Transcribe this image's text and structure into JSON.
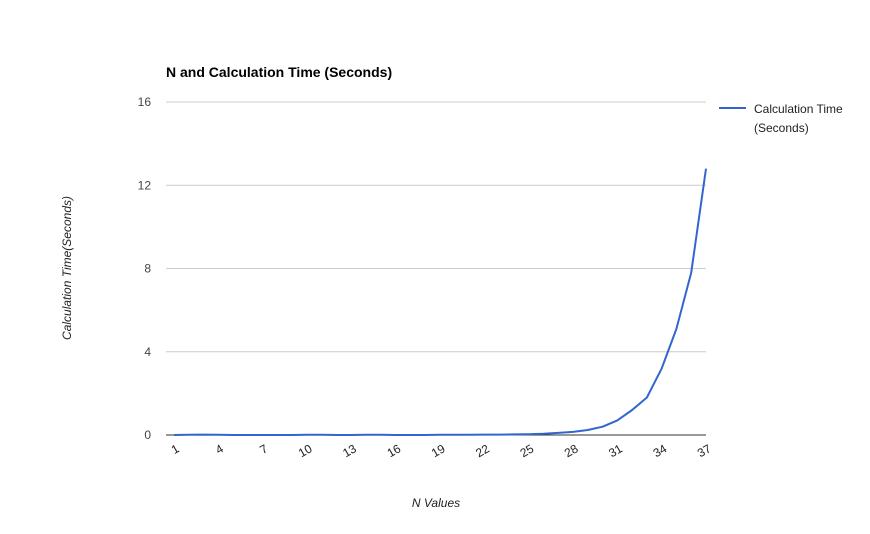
{
  "chart_data": {
    "type": "line",
    "title": "N and Calculation Time (Seconds)",
    "xlabel": "N Values",
    "ylabel": "Calculation Time(Seconds)",
    "ylim": [
      0,
      16
    ],
    "yticks": [
      "0",
      "4",
      "8",
      "12",
      "16"
    ],
    "xticks": [
      "1",
      "4",
      "7",
      "10",
      "13",
      "16",
      "19",
      "22",
      "25",
      "28",
      "31",
      "34",
      "37"
    ],
    "grid": true,
    "legend_position": "right",
    "x": [
      1,
      2,
      3,
      4,
      5,
      6,
      7,
      8,
      9,
      10,
      11,
      12,
      13,
      14,
      15,
      16,
      17,
      18,
      19,
      20,
      21,
      22,
      23,
      24,
      25,
      26,
      27,
      28,
      29,
      30,
      31,
      32,
      33,
      34,
      35,
      36,
      37
    ],
    "series": [
      {
        "name": "Calculation Time (Seconds)",
        "legend_lines": [
          "Calculation Time",
          "(Seconds)"
        ],
        "color": "#3366cc",
        "values": [
          0,
          0.01,
          0.02,
          0.01,
          0,
          0,
          0,
          0,
          0,
          0.01,
          0.01,
          0,
          0,
          0.01,
          0.01,
          0,
          0,
          0,
          0.01,
          0.01,
          0.01,
          0.02,
          0.02,
          0.03,
          0.04,
          0.06,
          0.1,
          0.15,
          0.24,
          0.4,
          0.7,
          1.2,
          1.8,
          3.2,
          5.1,
          7.8,
          12.8
        ]
      }
    ]
  }
}
